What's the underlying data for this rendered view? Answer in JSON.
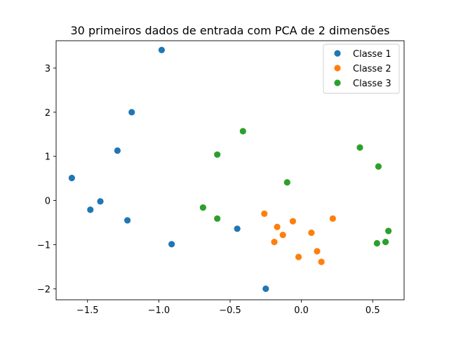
{
  "chart_data": {
    "type": "scatter",
    "title": "30 primeiros dados de entrada com PCA de 2 dimensões",
    "xlabel": "",
    "ylabel": "",
    "xlim": [
      -1.72,
      0.72
    ],
    "ylim": [
      -2.25,
      3.62
    ],
    "xticks": [
      -1.5,
      -1.0,
      -0.5,
      0.0,
      0.5
    ],
    "xtick_labels": [
      "−1.5",
      "−1.0",
      "−0.5",
      "0.0",
      "0.5"
    ],
    "yticks": [
      -2,
      -1,
      0,
      1,
      2,
      3
    ],
    "ytick_labels": [
      "−2",
      "−1",
      "0",
      "1",
      "2",
      "3"
    ],
    "grid": false,
    "legend_position": "top-right",
    "series": [
      {
        "name": "Classe 1",
        "color": "#1f77b4",
        "points": [
          [
            -0.98,
            3.41
          ],
          [
            -1.19,
            2.0
          ],
          [
            -1.29,
            1.13
          ],
          [
            -1.61,
            0.51
          ],
          [
            -1.41,
            -0.02
          ],
          [
            -1.48,
            -0.21
          ],
          [
            -1.22,
            -0.45
          ],
          [
            -0.91,
            -0.99
          ],
          [
            -0.45,
            -0.64
          ],
          [
            -0.25,
            -2.0
          ]
        ]
      },
      {
        "name": "Classe 2",
        "color": "#ff7f0e",
        "points": [
          [
            -0.26,
            -0.3
          ],
          [
            -0.17,
            -0.6
          ],
          [
            -0.13,
            -0.78
          ],
          [
            -0.06,
            -0.47
          ],
          [
            -0.19,
            -0.94
          ],
          [
            0.22,
            -0.41
          ],
          [
            0.07,
            -0.73
          ],
          [
            0.11,
            -1.15
          ],
          [
            0.14,
            -1.39
          ],
          [
            -0.02,
            -1.28
          ]
        ]
      },
      {
        "name": "Classe 3",
        "color": "#2ca02c",
        "points": [
          [
            -0.41,
            1.57
          ],
          [
            -0.59,
            1.04
          ],
          [
            -0.1,
            0.41
          ],
          [
            -0.69,
            -0.16
          ],
          [
            -0.59,
            -0.41
          ],
          [
            0.41,
            1.2
          ],
          [
            0.54,
            0.77
          ],
          [
            0.61,
            -0.69
          ],
          [
            0.59,
            -0.94
          ],
          [
            0.53,
            -0.97
          ]
        ]
      }
    ]
  }
}
